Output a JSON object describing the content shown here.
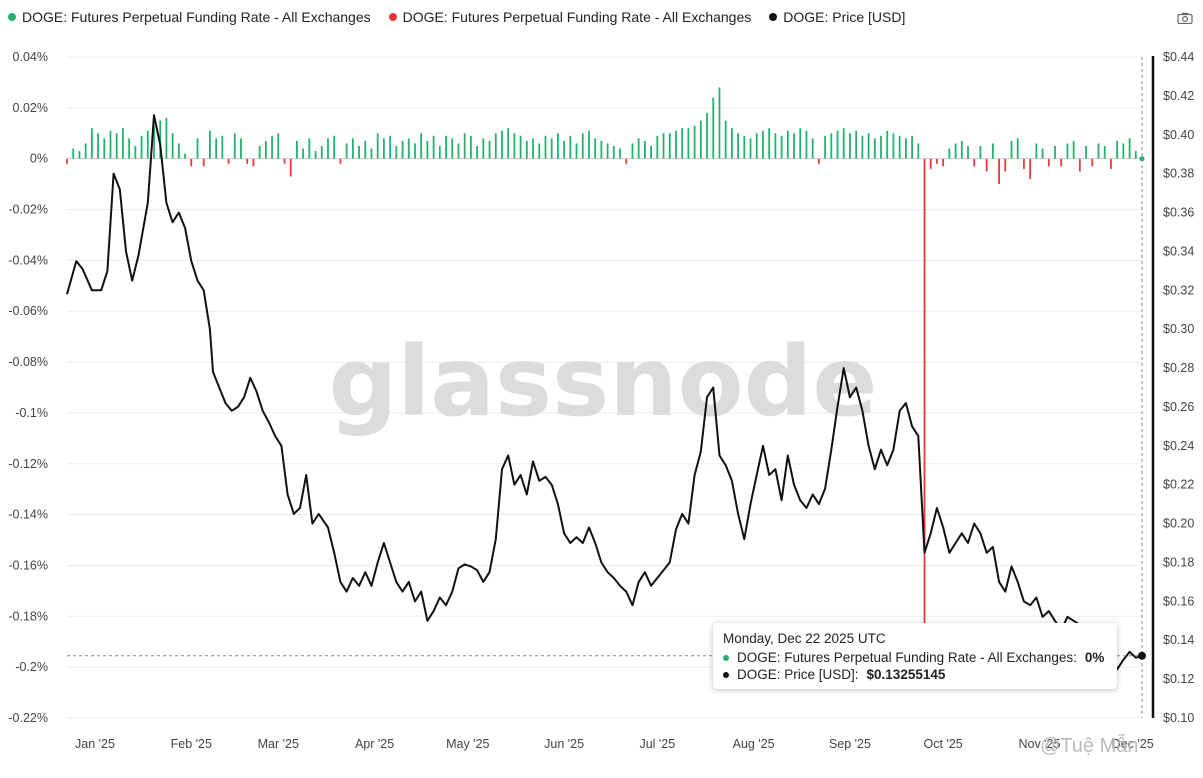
{
  "legend": [
    {
      "label": "DOGE: Futures Perpetual Funding Rate - All Exchanges",
      "color": "#23b26d"
    },
    {
      "label": "DOGE: Futures Perpetual Funding Rate - All Exchanges",
      "color": "#e5383b"
    },
    {
      "label": "DOGE: Price [USD]",
      "color": "#111111"
    }
  ],
  "watermark": "glassnode",
  "source_credit": "@Tuệ Mẫn",
  "tooltip": {
    "date": "Monday, Dec 22 2025 UTC",
    "funding_label": "DOGE: Futures Perpetual Funding Rate - All Exchanges:",
    "funding_value": "0%",
    "price_label": "DOGE: Price [USD]:",
    "price_value": "$0.13255145"
  },
  "chart_data": {
    "type": "bar+line",
    "x_tick_labels": [
      "Jan '25",
      "Feb '25",
      "Mar '25",
      "Apr '25",
      "May '25",
      "Jun '25",
      "Jul '25",
      "Aug '25",
      "Sep '25",
      "Oct '25",
      "Nov '25",
      "Dec '25"
    ],
    "y_left": {
      "tick_labels": [
        "0.04%",
        "0.02%",
        "0%",
        "-0.02%",
        "-0.04%",
        "-0.06%",
        "-0.08%",
        "-0.1%",
        "-0.12%",
        "-0.14%",
        "-0.16%",
        "-0.18%",
        "-0.2%",
        "-0.22%"
      ],
      "range": [
        -0.22,
        0.04
      ],
      "unit": "%"
    },
    "y_right": {
      "tick_labels": [
        "$0.44",
        "$0.42",
        "$0.40",
        "$0.38",
        "$0.36",
        "$0.34",
        "$0.32",
        "$0.30",
        "$0.28",
        "$0.26",
        "$0.24",
        "$0.22",
        "$0.20",
        "$0.18",
        "$0.16",
        "$0.14",
        "$0.12",
        "$0.10"
      ],
      "range": [
        0.1,
        0.44
      ],
      "unit": "USD"
    },
    "grid": true,
    "series": [
      {
        "name": "DOGE: Futures Perpetual Funding Rate - All Exchanges",
        "axis": "left",
        "color": "#23b26d",
        "kind": "bar-positive"
      },
      {
        "name": "DOGE: Futures Perpetual Funding Rate - All Exchanges",
        "axis": "left",
        "color": "#e5383b",
        "kind": "bar-negative"
      },
      {
        "name": "DOGE: Price [USD]",
        "axis": "right",
        "color": "#111111",
        "kind": "line"
      }
    ],
    "price_points": [
      [
        0,
        0.318
      ],
      [
        3,
        0.335
      ],
      [
        5,
        0.331
      ],
      [
        8,
        0.32
      ],
      [
        11,
        0.32
      ],
      [
        13,
        0.33
      ],
      [
        15,
        0.38
      ],
      [
        17,
        0.372
      ],
      [
        19,
        0.34
      ],
      [
        21,
        0.325
      ],
      [
        23,
        0.338
      ],
      [
        26,
        0.365
      ],
      [
        28,
        0.41
      ],
      [
        30,
        0.395
      ],
      [
        32,
        0.365
      ],
      [
        34,
        0.355
      ],
      [
        36,
        0.36
      ],
      [
        38,
        0.352
      ],
      [
        40,
        0.335
      ],
      [
        42,
        0.325
      ],
      [
        44,
        0.32
      ],
      [
        46,
        0.3
      ],
      [
        47,
        0.278
      ],
      [
        49,
        0.27
      ],
      [
        51,
        0.262
      ],
      [
        53,
        0.258
      ],
      [
        55,
        0.26
      ],
      [
        57,
        0.265
      ],
      [
        59,
        0.275
      ],
      [
        61,
        0.268
      ],
      [
        63,
        0.258
      ],
      [
        65,
        0.252
      ],
      [
        67,
        0.245
      ],
      [
        69,
        0.24
      ],
      [
        71,
        0.215
      ],
      [
        73,
        0.205
      ],
      [
        75,
        0.208
      ],
      [
        77,
        0.225
      ],
      [
        79,
        0.2
      ],
      [
        81,
        0.205
      ],
      [
        84,
        0.198
      ],
      [
        86,
        0.185
      ],
      [
        88,
        0.17
      ],
      [
        90,
        0.165
      ],
      [
        92,
        0.172
      ],
      [
        94,
        0.168
      ],
      [
        96,
        0.175
      ],
      [
        98,
        0.168
      ],
      [
        100,
        0.18
      ],
      [
        102,
        0.19
      ],
      [
        104,
        0.18
      ],
      [
        106,
        0.17
      ],
      [
        108,
        0.165
      ],
      [
        110,
        0.17
      ],
      [
        112,
        0.16
      ],
      [
        114,
        0.165
      ],
      [
        116,
        0.15
      ],
      [
        118,
        0.155
      ],
      [
        120,
        0.162
      ],
      [
        122,
        0.158
      ],
      [
        124,
        0.165
      ],
      [
        126,
        0.177
      ],
      [
        128,
        0.179
      ],
      [
        130,
        0.178
      ],
      [
        132,
        0.176
      ],
      [
        134,
        0.17
      ],
      [
        136,
        0.175
      ],
      [
        138,
        0.192
      ],
      [
        140,
        0.228
      ],
      [
        142,
        0.235
      ],
      [
        144,
        0.22
      ],
      [
        146,
        0.225
      ],
      [
        148,
        0.215
      ],
      [
        150,
        0.232
      ],
      [
        152,
        0.222
      ],
      [
        154,
        0.224
      ],
      [
        156,
        0.22
      ],
      [
        158,
        0.21
      ],
      [
        160,
        0.195
      ],
      [
        162,
        0.19
      ],
      [
        164,
        0.193
      ],
      [
        166,
        0.19
      ],
      [
        168,
        0.198
      ],
      [
        170,
        0.19
      ],
      [
        172,
        0.18
      ],
      [
        174,
        0.175
      ],
      [
        176,
        0.172
      ],
      [
        178,
        0.168
      ],
      [
        180,
        0.165
      ],
      [
        182,
        0.158
      ],
      [
        184,
        0.17
      ],
      [
        186,
        0.175
      ],
      [
        188,
        0.168
      ],
      [
        190,
        0.172
      ],
      [
        192,
        0.176
      ],
      [
        194,
        0.18
      ],
      [
        196,
        0.197
      ],
      [
        198,
        0.205
      ],
      [
        200,
        0.2
      ],
      [
        202,
        0.225
      ],
      [
        204,
        0.237
      ],
      [
        206,
        0.265
      ],
      [
        208,
        0.27
      ],
      [
        210,
        0.235
      ],
      [
        212,
        0.23
      ],
      [
        214,
        0.222
      ],
      [
        216,
        0.205
      ],
      [
        218,
        0.192
      ],
      [
        220,
        0.21
      ],
      [
        222,
        0.225
      ],
      [
        224,
        0.24
      ],
      [
        226,
        0.225
      ],
      [
        228,
        0.228
      ],
      [
        230,
        0.212
      ],
      [
        232,
        0.235
      ],
      [
        234,
        0.22
      ],
      [
        236,
        0.212
      ],
      [
        238,
        0.208
      ],
      [
        240,
        0.215
      ],
      [
        242,
        0.21
      ],
      [
        244,
        0.218
      ],
      [
        246,
        0.238
      ],
      [
        248,
        0.26
      ],
      [
        250,
        0.28
      ],
      [
        252,
        0.265
      ],
      [
        254,
        0.27
      ],
      [
        256,
        0.258
      ],
      [
        258,
        0.24
      ],
      [
        260,
        0.228
      ],
      [
        262,
        0.238
      ],
      [
        264,
        0.23
      ],
      [
        266,
        0.238
      ],
      [
        268,
        0.258
      ],
      [
        270,
        0.262
      ],
      [
        272,
        0.25
      ],
      [
        274,
        0.245
      ],
      [
        276,
        0.185
      ],
      [
        278,
        0.195
      ],
      [
        280,
        0.208
      ],
      [
        282,
        0.198
      ],
      [
        284,
        0.185
      ],
      [
        286,
        0.19
      ],
      [
        288,
        0.195
      ],
      [
        290,
        0.19
      ],
      [
        292,
        0.2
      ],
      [
        294,
        0.195
      ],
      [
        296,
        0.185
      ],
      [
        298,
        0.188
      ],
      [
        300,
        0.17
      ],
      [
        302,
        0.165
      ],
      [
        304,
        0.178
      ],
      [
        306,
        0.17
      ],
      [
        308,
        0.16
      ],
      [
        310,
        0.158
      ],
      [
        312,
        0.162
      ],
      [
        314,
        0.152
      ],
      [
        316,
        0.155
      ],
      [
        318,
        0.15
      ],
      [
        320,
        0.145
      ],
      [
        322,
        0.152
      ],
      [
        324,
        0.15
      ],
      [
        326,
        0.148
      ],
      [
        328,
        0.144
      ],
      [
        330,
        0.142
      ],
      [
        332,
        0.14
      ],
      [
        334,
        0.138
      ],
      [
        336,
        0.133
      ],
      [
        338,
        0.125
      ],
      [
        340,
        0.13
      ],
      [
        342,
        0.134
      ],
      [
        344,
        0.131
      ],
      [
        346,
        0.132
      ]
    ],
    "x_domain": [
      0,
      346
    ],
    "tick_day_offsets": [
      9,
      40,
      68,
      99,
      129,
      160,
      190,
      221,
      252,
      282,
      313,
      343
    ],
    "funding_bars": [
      [
        0,
        -0.002
      ],
      [
        2,
        0.004
      ],
      [
        4,
        0.003
      ],
      [
        6,
        0.006
      ],
      [
        8,
        0.012
      ],
      [
        10,
        0.01
      ],
      [
        12,
        0.008
      ],
      [
        14,
        0.011
      ],
      [
        16,
        0.01
      ],
      [
        18,
        0.012
      ],
      [
        20,
        0.008
      ],
      [
        22,
        0.005
      ],
      [
        24,
        0.009
      ],
      [
        26,
        0.011
      ],
      [
        28,
        0.013
      ],
      [
        30,
        0.015
      ],
      [
        32,
        0.016
      ],
      [
        34,
        0.01
      ],
      [
        36,
        0.006
      ],
      [
        38,
        0.002
      ],
      [
        40,
        -0.003
      ],
      [
        42,
        0.008
      ],
      [
        44,
        -0.003
      ],
      [
        46,
        0.011
      ],
      [
        48,
        0.008
      ],
      [
        50,
        0.009
      ],
      [
        52,
        -0.002
      ],
      [
        54,
        0.01
      ],
      [
        56,
        0.008
      ],
      [
        58,
        -0.002
      ],
      [
        60,
        -0.003
      ],
      [
        62,
        0.005
      ],
      [
        64,
        0.007
      ],
      [
        66,
        0.009
      ],
      [
        68,
        0.01
      ],
      [
        70,
        -0.002
      ],
      [
        72,
        -0.007
      ],
      [
        74,
        0.007
      ],
      [
        76,
        0.004
      ],
      [
        78,
        0.008
      ],
      [
        80,
        0.003
      ],
      [
        82,
        0.005
      ],
      [
        84,
        0.008
      ],
      [
        86,
        0.009
      ],
      [
        88,
        -0.002
      ],
      [
        90,
        0.006
      ],
      [
        92,
        0.008
      ],
      [
        94,
        0.005
      ],
      [
        96,
        0.007
      ],
      [
        98,
        0.004
      ],
      [
        100,
        0.01
      ],
      [
        102,
        0.008
      ],
      [
        104,
        0.009
      ],
      [
        106,
        0.005
      ],
      [
        108,
        0.007
      ],
      [
        110,
        0.008
      ],
      [
        112,
        0.006
      ],
      [
        114,
        0.01
      ],
      [
        116,
        0.007
      ],
      [
        118,
        0.009
      ],
      [
        120,
        0.005
      ],
      [
        122,
        0.009
      ],
      [
        124,
        0.008
      ],
      [
        126,
        0.006
      ],
      [
        128,
        0.01
      ],
      [
        130,
        0.009
      ],
      [
        132,
        0.005
      ],
      [
        134,
        0.008
      ],
      [
        136,
        0.007
      ],
      [
        138,
        0.01
      ],
      [
        140,
        0.011
      ],
      [
        142,
        0.012
      ],
      [
        144,
        0.01
      ],
      [
        146,
        0.009
      ],
      [
        148,
        0.007
      ],
      [
        150,
        0.008
      ],
      [
        152,
        0.006
      ],
      [
        154,
        0.009
      ],
      [
        156,
        0.008
      ],
      [
        158,
        0.01
      ],
      [
        160,
        0.007
      ],
      [
        162,
        0.009
      ],
      [
        164,
        0.006
      ],
      [
        166,
        0.01
      ],
      [
        168,
        0.011
      ],
      [
        170,
        0.008
      ],
      [
        172,
        0.007
      ],
      [
        174,
        0.006
      ],
      [
        176,
        0.005
      ],
      [
        178,
        0.004
      ],
      [
        180,
        -0.002
      ],
      [
        182,
        0.006
      ],
      [
        184,
        0.008
      ],
      [
        186,
        0.007
      ],
      [
        188,
        0.005
      ],
      [
        190,
        0.009
      ],
      [
        192,
        0.01
      ],
      [
        194,
        0.01
      ],
      [
        196,
        0.011
      ],
      [
        198,
        0.012
      ],
      [
        200,
        0.012
      ],
      [
        202,
        0.013
      ],
      [
        204,
        0.015
      ],
      [
        206,
        0.018
      ],
      [
        208,
        0.024
      ],
      [
        210,
        0.028
      ],
      [
        212,
        0.015
      ],
      [
        214,
        0.012
      ],
      [
        216,
        0.01
      ],
      [
        218,
        0.009
      ],
      [
        220,
        0.008
      ],
      [
        222,
        0.01
      ],
      [
        224,
        0.011
      ],
      [
        226,
        0.012
      ],
      [
        228,
        0.01
      ],
      [
        230,
        0.009
      ],
      [
        232,
        0.011
      ],
      [
        234,
        0.01
      ],
      [
        236,
        0.012
      ],
      [
        238,
        0.011
      ],
      [
        240,
        0.008
      ],
      [
        242,
        -0.002
      ],
      [
        244,
        0.009
      ],
      [
        246,
        0.01
      ],
      [
        248,
        0.011
      ],
      [
        250,
        0.012
      ],
      [
        252,
        0.01
      ],
      [
        254,
        0.011
      ],
      [
        256,
        0.009
      ],
      [
        258,
        0.01
      ],
      [
        260,
        0.008
      ],
      [
        262,
        0.009
      ],
      [
        264,
        0.011
      ],
      [
        266,
        0.01
      ],
      [
        268,
        0.009
      ],
      [
        270,
        0.008
      ],
      [
        272,
        0.009
      ],
      [
        274,
        0.006
      ],
      [
        276,
        -0.184
      ],
      [
        278,
        -0.004
      ],
      [
        280,
        -0.002
      ],
      [
        282,
        -0.003
      ],
      [
        284,
        0.004
      ],
      [
        286,
        0.006
      ],
      [
        288,
        0.007
      ],
      [
        290,
        0.005
      ],
      [
        292,
        -0.003
      ],
      [
        294,
        0.005
      ],
      [
        296,
        -0.005
      ],
      [
        298,
        0.006
      ],
      [
        300,
        -0.01
      ],
      [
        302,
        -0.005
      ],
      [
        304,
        0.007
      ],
      [
        306,
        0.008
      ],
      [
        308,
        -0.004
      ],
      [
        310,
        -0.008
      ],
      [
        312,
        0.006
      ],
      [
        314,
        0.004
      ],
      [
        316,
        -0.003
      ],
      [
        318,
        0.005
      ],
      [
        320,
        -0.003
      ],
      [
        322,
        0.006
      ],
      [
        324,
        0.007
      ],
      [
        326,
        -0.005
      ],
      [
        328,
        0.005
      ],
      [
        330,
        -0.003
      ],
      [
        332,
        0.006
      ],
      [
        334,
        0.005
      ],
      [
        336,
        -0.004
      ],
      [
        338,
        0.007
      ],
      [
        340,
        0.006
      ],
      [
        342,
        0.008
      ],
      [
        344,
        0.003
      ],
      [
        346,
        0.0
      ]
    ]
  }
}
